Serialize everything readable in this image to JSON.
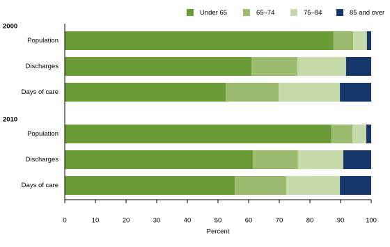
{
  "chart_data": {
    "type": "stacked-bar-horizontal",
    "groups": [
      "2000",
      "2010"
    ],
    "categories": [
      "Population",
      "Discharges",
      "Days of care",
      "Population",
      "Discharges",
      "Days of care"
    ],
    "series": [
      {
        "name": "Under 65",
        "color": "#6b9b36",
        "values": [
          87.7,
          60.9,
          52.5,
          87.0,
          61.4,
          55.5
        ]
      },
      {
        "name": "65–74",
        "color": "#9bbb6f",
        "values": [
          6.4,
          15.0,
          17.3,
          6.9,
          14.7,
          16.8
        ]
      },
      {
        "name": "75–84",
        "color": "#c6d9a8",
        "values": [
          4.5,
          15.9,
          20.0,
          4.5,
          14.8,
          17.5
        ]
      },
      {
        "name": "85 and over",
        "color": "#17376a",
        "values": [
          1.4,
          8.2,
          10.2,
          1.6,
          9.1,
          10.2
        ]
      }
    ],
    "xlabel": "Percent",
    "xlim": [
      0,
      100
    ],
    "xticks": [
      0,
      10,
      20,
      30,
      40,
      50,
      60,
      70,
      80,
      90,
      100
    ]
  }
}
